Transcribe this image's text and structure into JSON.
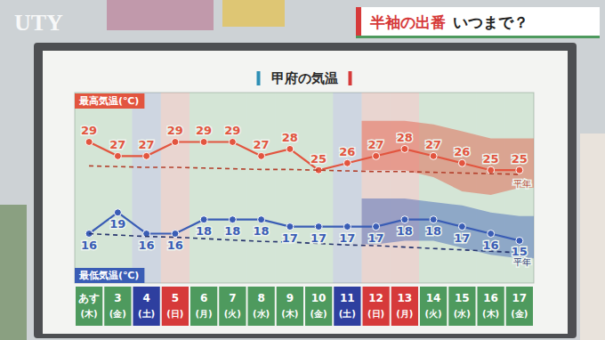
{
  "header": {
    "logo": "UTY",
    "title": [
      "半袖の出番",
      "いつまで？"
    ]
  },
  "chart_data": {
    "type": "line",
    "title": "甲府の気温",
    "categories": [
      "あす(木)",
      "3(金)",
      "4(土)",
      "5(日)",
      "6(月)",
      "7(火)",
      "8(水)",
      "9(木)",
      "10(金)",
      "11(土)",
      "12(日)",
      "13(月)",
      "14(火)",
      "15(水)",
      "16(木)",
      "17(金)"
    ],
    "colors": [
      "#4e9a5e",
      "#4e9a5e",
      "#2e3f9f",
      "#d63a3a",
      "#4e9a5e",
      "#4e9a5e",
      "#4e9a5e",
      "#4e9a5e",
      "#4e9a5e",
      "#2e3f9f",
      "#d63a3a",
      "#d63a3a",
      "#4e9a5e",
      "#4e9a5e",
      "#4e9a5e",
      "#4e9a5e"
    ],
    "series": [
      {
        "name": "最高気温(℃)",
        "color": "#e2553f",
        "marker": "circle",
        "line_style": "solid",
        "data_labels": true,
        "values": [
          29,
          27,
          27,
          29,
          29,
          29,
          27,
          28,
          25,
          26,
          27,
          28,
          27,
          26,
          25,
          25
        ],
        "range_low": [
          null,
          null,
          null,
          null,
          null,
          null,
          null,
          null,
          null,
          null,
          25,
          25,
          24,
          22,
          21.5,
          22.5
        ],
        "range_high": [
          null,
          null,
          null,
          null,
          null,
          null,
          null,
          null,
          null,
          null,
          32,
          32,
          31.5,
          30.5,
          29.5,
          29.5
        ]
      },
      {
        "name": "最低気温(℃)",
        "color": "#3a5db5",
        "marker": "circle",
        "line_style": "solid",
        "data_labels": true,
        "values": [
          16,
          19,
          16,
          16,
          18,
          18,
          18,
          17,
          17,
          17,
          17,
          18,
          18,
          17,
          16,
          15
        ],
        "range_low": [
          null,
          null,
          null,
          null,
          null,
          null,
          null,
          null,
          null,
          null,
          14.5,
          15,
          15,
          14,
          13,
          12.5
        ],
        "range_high": [
          null,
          null,
          null,
          null,
          null,
          null,
          null,
          null,
          null,
          null,
          21,
          21,
          20.5,
          20,
          19,
          18.5
        ]
      },
      {
        "name": "平年",
        "color": "#b3402c",
        "marker": "none",
        "line_style": "dashed",
        "data_labels": false,
        "values": [
          25.6,
          25.5,
          25.4,
          25.4,
          25.3,
          25.2,
          25.1,
          25.1,
          25.0,
          24.9,
          24.8,
          24.8,
          24.7,
          24.6,
          24.5,
          24.4
        ]
      },
      {
        "name": "平年",
        "color": "#27356e",
        "marker": "none",
        "line_style": "dashed",
        "data_labels": false,
        "values": [
          16.0,
          15.8,
          15.6,
          15.5,
          15.3,
          15.1,
          14.9,
          14.8,
          14.6,
          14.4,
          14.3,
          14.1,
          13.9,
          13.7,
          13.5,
          13.3
        ]
      }
    ],
    "ylim": [
      9,
      36
    ],
    "yticks": [],
    "tick_labels": "x",
    "grid": false
  }
}
